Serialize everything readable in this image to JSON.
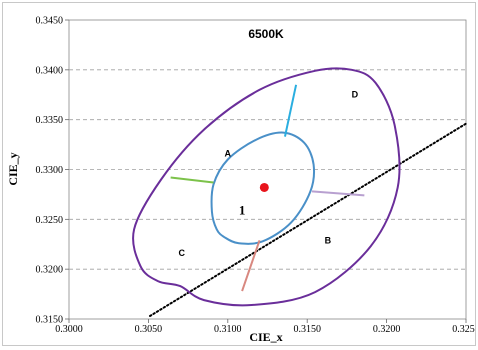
{
  "chart_data": {
    "type": "scatter",
    "title": "6500K",
    "xlabel": "CIE_x",
    "ylabel": "CIE_y",
    "xlim": [
      0.3,
      0.325
    ],
    "ylim": [
      0.315,
      0.345
    ],
    "x_ticks": [
      "0.3000",
      "0.3050",
      "0.3100",
      "0.3150",
      "0.3200",
      "0.3250"
    ],
    "y_ticks": [
      "0.3150",
      "0.3200",
      "0.3250",
      "0.3300",
      "0.3350",
      "0.3400",
      "0.3450"
    ],
    "grid": "horizontal dashed",
    "center_point": {
      "x": 0.3123,
      "y": 0.3282,
      "color": "#e8141c"
    },
    "inner_ellipse": {
      "color": "#4a90c8",
      "points": [
        [
          0.3098,
          0.3232
        ],
        [
          0.3107,
          0.3226
        ],
        [
          0.3122,
          0.3228
        ],
        [
          0.314,
          0.3247
        ],
        [
          0.3152,
          0.3278
        ],
        [
          0.3154,
          0.3305
        ],
        [
          0.3148,
          0.3327
        ],
        [
          0.3135,
          0.3337
        ],
        [
          0.3118,
          0.333
        ],
        [
          0.31,
          0.331
        ],
        [
          0.3091,
          0.3285
        ],
        [
          0.309,
          0.3258
        ],
        [
          0.3093,
          0.324
        ],
        [
          0.3098,
          0.3232
        ]
      ]
    },
    "outer_ellipse": {
      "color": "#6a2e9a",
      "points": [
        [
          0.307,
          0.3183
        ],
        [
          0.3085,
          0.3169
        ],
        [
          0.3115,
          0.3164
        ],
        [
          0.3155,
          0.3177
        ],
        [
          0.319,
          0.3223
        ],
        [
          0.3207,
          0.3282
        ],
        [
          0.3205,
          0.3345
        ],
        [
          0.3193,
          0.3387
        ],
        [
          0.3178,
          0.34
        ],
        [
          0.3155,
          0.3399
        ],
        [
          0.312,
          0.338
        ],
        [
          0.3085,
          0.334
        ],
        [
          0.3058,
          0.329
        ],
        [
          0.3041,
          0.324
        ],
        [
          0.3045,
          0.3203
        ],
        [
          0.3056,
          0.3188
        ],
        [
          0.307,
          0.3183
        ]
      ]
    },
    "trend_line": {
      "color": "#000000",
      "style": "dotted",
      "points": [
        [
          0.3051,
          0.3153
        ],
        [
          0.325,
          0.3346
        ]
      ]
    },
    "segments": [
      {
        "name": "D",
        "color": "#2aaee0",
        "points": [
          [
            0.3136,
            0.3333
          ],
          [
            0.3143,
            0.3385
          ]
        ]
      },
      {
        "name": "A",
        "color": "#7cc24a",
        "points": [
          [
            0.3091,
            0.3287
          ],
          [
            0.3064,
            0.3292
          ]
        ]
      },
      {
        "name": "B",
        "color": "#b8a0d0",
        "points": [
          [
            0.3153,
            0.3278
          ],
          [
            0.3186,
            0.3274
          ]
        ]
      },
      {
        "name": "C",
        "color": "#d88880",
        "points": [
          [
            0.312,
            0.3229
          ],
          [
            0.3109,
            0.3178
          ]
        ]
      }
    ],
    "region_labels": [
      {
        "text": "A",
        "x": 0.31,
        "y": 0.3313
      },
      {
        "text": "B",
        "x": 0.3163,
        "y": 0.3226
      },
      {
        "text": "C",
        "x": 0.3071,
        "y": 0.3213
      },
      {
        "text": "D",
        "x": 0.318,
        "y": 0.3372
      }
    ],
    "center_label": {
      "text": "1",
      "x": 0.3109,
      "y": 0.3255
    }
  }
}
